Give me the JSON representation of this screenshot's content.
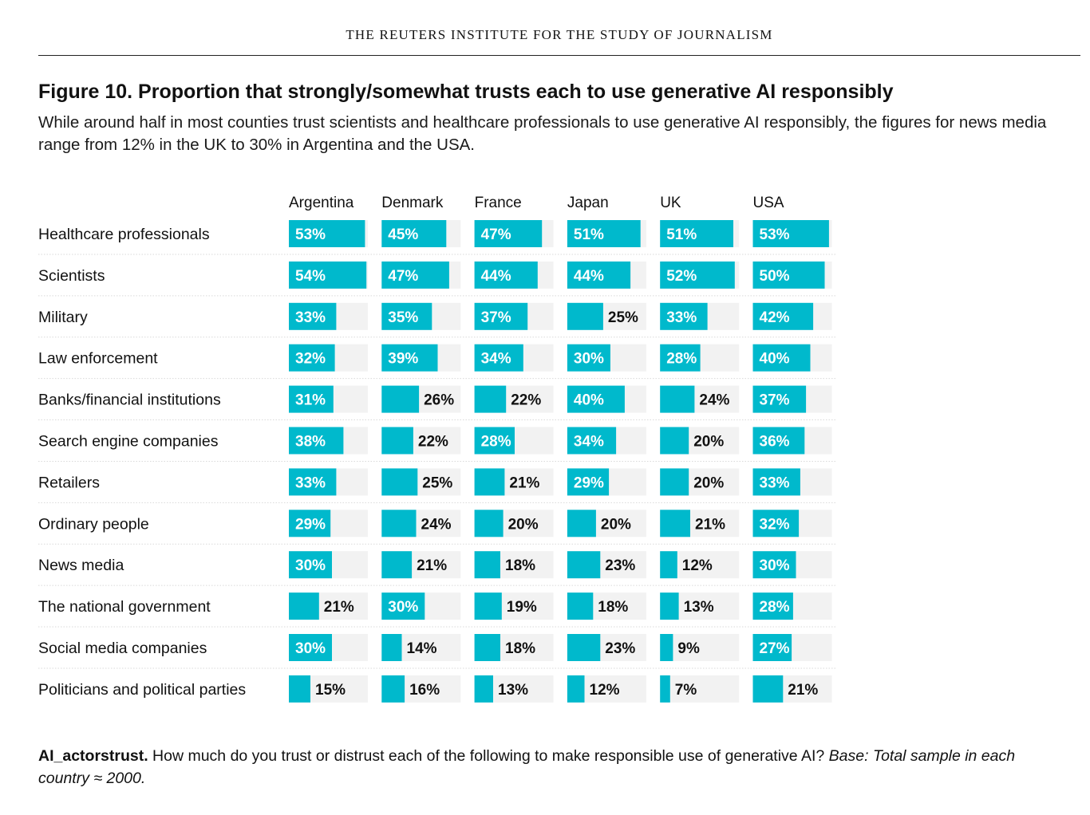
{
  "masthead": "THE REUTERS INSTITUTE FOR THE STUDY OF JOURNALISM",
  "title": "Figure 10. Proportion that strongly/somewhat trusts each to use generative AI responsibly",
  "subtitle": "While around half in most counties trust scientists and healthcare professionals to use generative AI responsibly, the figures for news media range from 12% in the UK to 30% in Argentina and the USA.",
  "footnote": {
    "code": "AI_actorstrust.",
    "question": " How much do you trust or distrust each of the following to make responsible use of generative AI? ",
    "base": "Base: Total sample in each country ≈ 2000."
  },
  "colors": {
    "bar": "#00b9cc",
    "track": "#f2f2f2",
    "row_divider": "#d9d9d9"
  },
  "chart_data": {
    "type": "bar",
    "orientation": "horizontal",
    "layout": "small-multiples",
    "unit": "%",
    "xlim": [
      0,
      55
    ],
    "categories": [
      "Healthcare professionals",
      "Scientists",
      "Military",
      "Law enforcement",
      "Banks/financial institutions",
      "Search engine companies",
      "Retailers",
      "Ordinary people",
      "News media",
      "The national government",
      "Social media companies",
      "Politicians and political parties"
    ],
    "series": [
      {
        "name": "Argentina",
        "values": [
          53,
          54,
          33,
          32,
          31,
          38,
          33,
          29,
          30,
          21,
          30,
          15
        ]
      },
      {
        "name": "Denmark",
        "values": [
          45,
          47,
          35,
          39,
          26,
          22,
          25,
          24,
          21,
          30,
          14,
          16
        ]
      },
      {
        "name": "France",
        "values": [
          47,
          44,
          37,
          34,
          22,
          28,
          21,
          20,
          18,
          19,
          18,
          13
        ]
      },
      {
        "name": "Japan",
        "values": [
          51,
          44,
          25,
          30,
          40,
          34,
          29,
          20,
          23,
          18,
          23,
          12
        ]
      },
      {
        "name": "UK",
        "values": [
          51,
          52,
          33,
          28,
          24,
          20,
          20,
          21,
          12,
          13,
          9,
          7
        ]
      },
      {
        "name": "USA",
        "values": [
          53,
          50,
          42,
          40,
          37,
          36,
          33,
          32,
          30,
          28,
          27,
          21
        ]
      }
    ]
  }
}
